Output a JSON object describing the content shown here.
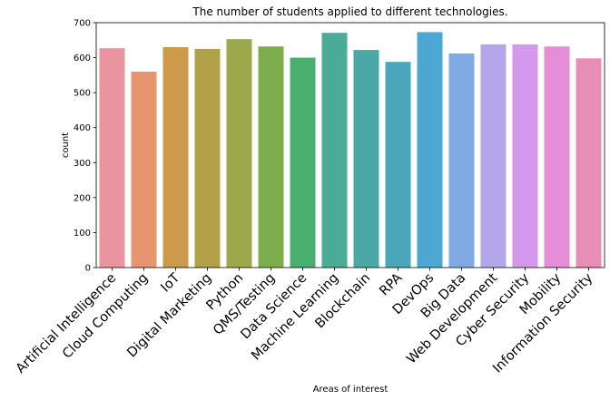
{
  "chart_data": {
    "type": "bar",
    "title": "The number of students applied to different technologies.",
    "xlabel": "Areas of interest",
    "ylabel": "count",
    "ylim": [
      0,
      700
    ],
    "yticks": [
      0,
      100,
      200,
      300,
      400,
      500,
      600,
      700
    ],
    "grid": false,
    "categories": [
      "Artificial Intelligence",
      "Cloud Computing",
      "IoT",
      "Digital Marketing",
      "Python",
      "QMS/Testing",
      "Data Science",
      "Machine Learning",
      "Blockchain",
      "RPA",
      "DevOps",
      "Big Data",
      "Web Development",
      "Cyber Security",
      "Mobility",
      "Information Security"
    ],
    "values": [
      627,
      560,
      630,
      625,
      653,
      632,
      600,
      671,
      622,
      588,
      673,
      612,
      638,
      638,
      632,
      598
    ],
    "colors": [
      "#ea949f",
      "#e6956f",
      "#cd9a4c",
      "#b3a14a",
      "#9ca84a",
      "#7ead4b",
      "#4aae6e",
      "#4bab96",
      "#4aa8a7",
      "#4aa7b9",
      "#4aa8d3",
      "#81a9e3",
      "#b3a6ea",
      "#d499ea",
      "#e58dd6",
      "#e88db6"
    ]
  }
}
